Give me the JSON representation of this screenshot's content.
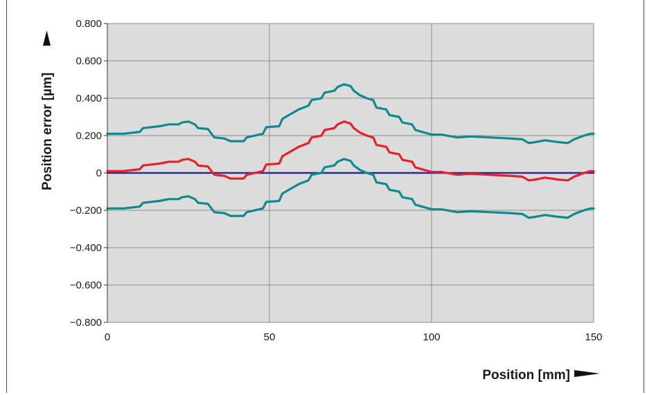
{
  "chart_data": {
    "type": "line",
    "xlabel": "Position [mm]",
    "ylabel": "Position error [µm]",
    "xlim": [
      0,
      150
    ],
    "ylim": [
      -0.8,
      0.8
    ],
    "x_ticks": [
      "0",
      "50",
      "100",
      "150"
    ],
    "y_ticks": [
      "0.800",
      "0.600",
      "0.400",
      "0.200",
      "0",
      "−0.200",
      "−0.400",
      "−0.600",
      "−0.800"
    ],
    "grid": true,
    "legend": "none",
    "colors": {
      "plot_background": "#dcdcdc",
      "grid": "#8c8c8c",
      "envelope": "#0e8a8e",
      "error": "#e8202a",
      "zero_line": "#2b2b8c",
      "axis_text": "#1a1a1a"
    },
    "series": [
      {
        "color": "#0e8a8e",
        "points": [
          [
            0,
            0.21
          ],
          [
            5,
            0.21
          ],
          [
            10,
            0.22
          ],
          [
            11,
            0.24
          ],
          [
            16,
            0.25
          ],
          [
            19,
            0.26
          ],
          [
            22,
            0.26
          ],
          [
            23,
            0.27
          ],
          [
            25,
            0.275
          ],
          [
            27,
            0.26
          ],
          [
            28,
            0.24
          ],
          [
            31,
            0.235
          ],
          [
            33,
            0.19
          ],
          [
            36,
            0.185
          ],
          [
            38,
            0.17
          ],
          [
            42,
            0.17
          ],
          [
            43,
            0.19
          ],
          [
            48,
            0.21
          ],
          [
            49,
            0.245
          ],
          [
            53,
            0.25
          ],
          [
            54,
            0.29
          ],
          [
            57,
            0.32
          ],
          [
            59,
            0.34
          ],
          [
            62,
            0.36
          ],
          [
            63,
            0.39
          ],
          [
            66,
            0.4
          ],
          [
            67,
            0.43
          ],
          [
            70,
            0.44
          ],
          [
            71,
            0.46
          ],
          [
            73,
            0.475
          ],
          [
            75,
            0.465
          ],
          [
            76,
            0.44
          ],
          [
            78,
            0.415
          ],
          [
            80,
            0.4
          ],
          [
            82,
            0.39
          ],
          [
            83,
            0.35
          ],
          [
            86,
            0.34
          ],
          [
            87,
            0.31
          ],
          [
            90,
            0.3
          ],
          [
            91,
            0.27
          ],
          [
            94,
            0.26
          ],
          [
            95,
            0.23
          ],
          [
            100,
            0.205
          ],
          [
            103,
            0.205
          ],
          [
            108,
            0.19
          ],
          [
            112,
            0.195
          ],
          [
            118,
            0.19
          ],
          [
            124,
            0.185
          ],
          [
            128,
            0.18
          ],
          [
            130,
            0.16
          ],
          [
            132,
            0.165
          ],
          [
            135,
            0.175
          ],
          [
            139,
            0.165
          ],
          [
            142,
            0.16
          ],
          [
            144,
            0.18
          ],
          [
            147,
            0.2
          ],
          [
            149,
            0.21
          ],
          [
            150,
            0.21
          ]
        ]
      },
      {
        "color": "#e8202a",
        "points": [
          [
            0,
            0.01
          ],
          [
            5,
            0.01
          ],
          [
            10,
            0.02
          ],
          [
            11,
            0.04
          ],
          [
            16,
            0.05
          ],
          [
            19,
            0.06
          ],
          [
            22,
            0.06
          ],
          [
            23,
            0.07
          ],
          [
            25,
            0.075
          ],
          [
            27,
            0.06
          ],
          [
            28,
            0.04
          ],
          [
            31,
            0.035
          ],
          [
            33,
            -0.01
          ],
          [
            36,
            -0.015
          ],
          [
            38,
            -0.03
          ],
          [
            42,
            -0.03
          ],
          [
            43,
            -0.01
          ],
          [
            48,
            0.01
          ],
          [
            49,
            0.045
          ],
          [
            53,
            0.05
          ],
          [
            54,
            0.09
          ],
          [
            57,
            0.12
          ],
          [
            59,
            0.14
          ],
          [
            62,
            0.16
          ],
          [
            63,
            0.19
          ],
          [
            66,
            0.2
          ],
          [
            67,
            0.23
          ],
          [
            70,
            0.24
          ],
          [
            71,
            0.26
          ],
          [
            73,
            0.275
          ],
          [
            75,
            0.265
          ],
          [
            76,
            0.24
          ],
          [
            78,
            0.215
          ],
          [
            80,
            0.2
          ],
          [
            82,
            0.19
          ],
          [
            83,
            0.15
          ],
          [
            86,
            0.14
          ],
          [
            87,
            0.11
          ],
          [
            90,
            0.1
          ],
          [
            91,
            0.07
          ],
          [
            94,
            0.06
          ],
          [
            95,
            0.03
          ],
          [
            100,
            0.005
          ],
          [
            103,
            0.005
          ],
          [
            108,
            -0.01
          ],
          [
            112,
            -0.005
          ],
          [
            118,
            -0.01
          ],
          [
            124,
            -0.015
          ],
          [
            128,
            -0.02
          ],
          [
            130,
            -0.04
          ],
          [
            132,
            -0.035
          ],
          [
            135,
            -0.025
          ],
          [
            139,
            -0.035
          ],
          [
            142,
            -0.04
          ],
          [
            144,
            -0.02
          ],
          [
            147,
            0.0
          ],
          [
            149,
            0.01
          ],
          [
            150,
            0.01
          ]
        ]
      },
      {
        "color": "#0e8a8e",
        "points": [
          [
            0,
            -0.19
          ],
          [
            5,
            -0.19
          ],
          [
            10,
            -0.18
          ],
          [
            11,
            -0.16
          ],
          [
            16,
            -0.15
          ],
          [
            19,
            -0.14
          ],
          [
            22,
            -0.14
          ],
          [
            23,
            -0.13
          ],
          [
            25,
            -0.125
          ],
          [
            27,
            -0.14
          ],
          [
            28,
            -0.16
          ],
          [
            31,
            -0.165
          ],
          [
            33,
            -0.21
          ],
          [
            36,
            -0.215
          ],
          [
            38,
            -0.23
          ],
          [
            42,
            -0.23
          ],
          [
            43,
            -0.21
          ],
          [
            48,
            -0.19
          ],
          [
            49,
            -0.155
          ],
          [
            53,
            -0.15
          ],
          [
            54,
            -0.11
          ],
          [
            57,
            -0.08
          ],
          [
            59,
            -0.06
          ],
          [
            62,
            -0.04
          ],
          [
            63,
            -0.01
          ],
          [
            66,
            0.0
          ],
          [
            67,
            0.03
          ],
          [
            70,
            0.04
          ],
          [
            71,
            0.06
          ],
          [
            73,
            0.075
          ],
          [
            75,
            0.065
          ],
          [
            76,
            0.04
          ],
          [
            78,
            0.015
          ],
          [
            80,
            0.0
          ],
          [
            82,
            -0.01
          ],
          [
            83,
            -0.05
          ],
          [
            86,
            -0.06
          ],
          [
            87,
            -0.09
          ],
          [
            90,
            -0.1
          ],
          [
            91,
            -0.13
          ],
          [
            94,
            -0.14
          ],
          [
            95,
            -0.17
          ],
          [
            100,
            -0.195
          ],
          [
            103,
            -0.195
          ],
          [
            108,
            -0.21
          ],
          [
            112,
            -0.205
          ],
          [
            118,
            -0.21
          ],
          [
            124,
            -0.215
          ],
          [
            128,
            -0.22
          ],
          [
            130,
            -0.24
          ],
          [
            132,
            -0.235
          ],
          [
            135,
            -0.225
          ],
          [
            139,
            -0.235
          ],
          [
            142,
            -0.24
          ],
          [
            144,
            -0.22
          ],
          [
            147,
            -0.2
          ],
          [
            149,
            -0.19
          ],
          [
            150,
            -0.19
          ]
        ]
      },
      {
        "color": "#2b2b8c",
        "points": [
          [
            0,
            0.0
          ],
          [
            150,
            0.0
          ]
        ]
      }
    ]
  }
}
